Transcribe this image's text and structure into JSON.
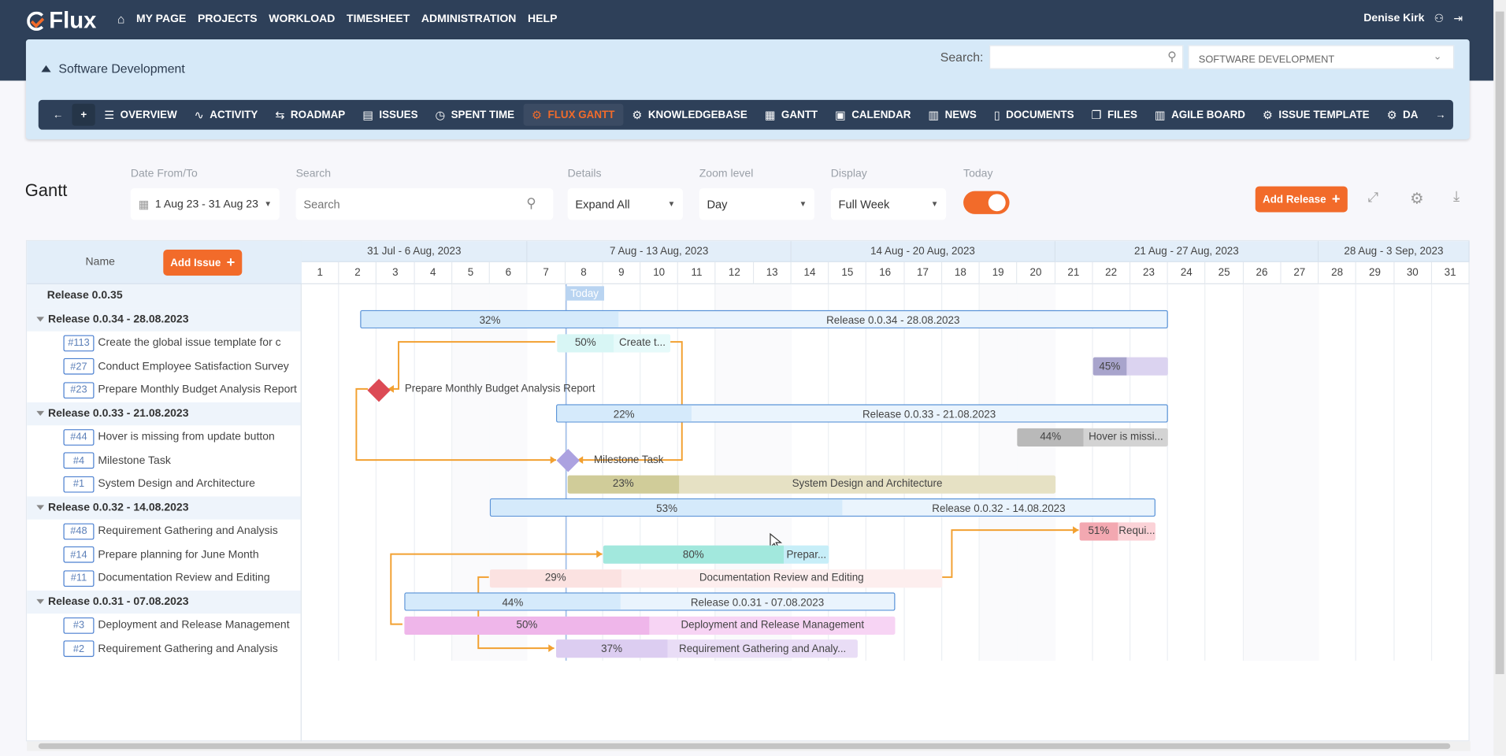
{
  "app": {
    "logo": "Flux",
    "user": "Denise Kirk"
  },
  "topnav": [
    "MY PAGE",
    "PROJECTS",
    "WORKLOAD",
    "TIMESHEET",
    "ADMINISTRATION",
    "HELP"
  ],
  "project": {
    "title": "Software Development",
    "search_label": "Search:",
    "selector": "SOFTWARE DEVELOPMENT"
  },
  "project_tabs": [
    {
      "label": "OVERVIEW",
      "icon": "overview-icon",
      "glyph": "☰"
    },
    {
      "label": "ACTIVITY",
      "icon": "activity-icon",
      "glyph": "∿"
    },
    {
      "label": "ROADMAP",
      "icon": "roadmap-icon",
      "glyph": "⇆"
    },
    {
      "label": "ISSUES",
      "icon": "issues-icon",
      "glyph": "▤"
    },
    {
      "label": "SPENT TIME",
      "icon": "clock-icon",
      "glyph": "◷"
    },
    {
      "label": "FLUX GANTT",
      "icon": "gear-icon",
      "glyph": "⚙",
      "active": true
    },
    {
      "label": "KNOWLEDGEBASE",
      "icon": "gear-icon",
      "glyph": "⚙"
    },
    {
      "label": "GANTT",
      "icon": "gantt-icon",
      "glyph": "▦"
    },
    {
      "label": "CALENDAR",
      "icon": "calendar-icon",
      "glyph": "▣"
    },
    {
      "label": "NEWS",
      "icon": "news-icon",
      "glyph": "▥"
    },
    {
      "label": "DOCUMENTS",
      "icon": "document-icon",
      "glyph": "▯"
    },
    {
      "label": "FILES",
      "icon": "files-icon",
      "glyph": "❐"
    },
    {
      "label": "AGILE BOARD",
      "icon": "board-icon",
      "glyph": "▥"
    },
    {
      "label": "ISSUE TEMPLATE",
      "icon": "gear-icon",
      "glyph": "⚙"
    },
    {
      "label": "DA",
      "icon": "gear-icon",
      "glyph": "⚙"
    }
  ],
  "page_title": "Gantt",
  "filters": {
    "date_label": "Date From/To",
    "date_value": "1 Aug 23 - 31 Aug 23",
    "search_label": "Search",
    "search_placeholder": "Search",
    "details_label": "Details",
    "details_value": "Expand All",
    "zoom_label": "Zoom level",
    "zoom_value": "Day",
    "display_label": "Display",
    "display_value": "Full Week",
    "today_label": "Today",
    "today_on": true
  },
  "actions": {
    "add_release": "Add Release",
    "add_issue": "Add Issue"
  },
  "gantt": {
    "name_header": "Name",
    "today_label": "Today",
    "today_day": 8,
    "weeks": [
      "31 Jul - 6 Aug, 2023",
      "7 Aug - 13 Aug, 2023",
      "14 Aug - 20 Aug, 2023",
      "21 Aug - 27 Aug, 2023",
      "28 Aug - 3 Sep, 2023"
    ],
    "days": [
      1,
      2,
      3,
      4,
      5,
      6,
      7,
      8,
      9,
      10,
      11,
      12,
      13,
      14,
      15,
      16,
      17,
      18,
      19,
      20,
      21,
      22,
      23,
      24,
      25,
      26,
      27,
      28,
      29,
      30,
      31
    ],
    "rows": [
      {
        "type": "release",
        "name": "Release 0.0.35",
        "expandable": false
      },
      {
        "type": "release",
        "name": "Release 0.0.34 - 28.08.2023",
        "expandable": true,
        "bar": {
          "start": 2.55,
          "end": 24,
          "progress": 32,
          "progress_text": "32%",
          "label": "Release 0.0.34 - 28.08.2023",
          "color": "#d5eafb",
          "light": "#eaf4fd",
          "border": "#5a93d8"
        }
      },
      {
        "type": "issue",
        "id": "#113",
        "name": "Create the global issue template for c",
        "bar": {
          "start": 7.78,
          "end": 10.8,
          "progress": 50,
          "progress_text": "50%",
          "label": "Create t...",
          "color": "#d8f6f5",
          "light": "#e6fafa"
        }
      },
      {
        "type": "issue",
        "id": "#27",
        "name": "Conduct Employee Satisfaction Survey",
        "bar": {
          "start": 22,
          "end": 24,
          "progress": 45,
          "progress_text": "45%",
          "label": "",
          "color": "#a8a4cc",
          "light": "#dbd3f0"
        }
      },
      {
        "type": "issue",
        "id": "#23",
        "name": "Prepare Monthly Budget Analysis Report",
        "milestone": {
          "day": 3.05,
          "color": "#dc4a55",
          "label": "Prepare Monthly Budget Analysis Report"
        }
      },
      {
        "type": "release",
        "name": "Release 0.0.33 - 21.08.2023",
        "expandable": true,
        "bar": {
          "start": 7.75,
          "end": 24,
          "progress": 22,
          "progress_text": "22%",
          "label": "Release 0.0.33 - 21.08.2023",
          "color": "#d5eafb",
          "light": "#eaf4fd",
          "border": "#5a93d8"
        }
      },
      {
        "type": "issue",
        "id": "#44",
        "name": "Hover is missing from update button",
        "bar": {
          "start": 20,
          "end": 24,
          "progress": 44,
          "progress_text": "44%",
          "label": "Hover is missi...",
          "color": "#b9b9b9",
          "light": "#d3d3d3"
        }
      },
      {
        "type": "issue",
        "id": "#4",
        "name": "Milestone Task",
        "milestone": {
          "day": 8.07,
          "color": "#aca2e0",
          "label": "Milestone Task"
        }
      },
      {
        "type": "issue",
        "id": "#1",
        "name": "System Design and Architecture",
        "bar": {
          "start": 8.05,
          "end": 21,
          "progress": 23,
          "progress_text": "23%",
          "label": "System Design and Architecture",
          "color": "#d0cc99",
          "light": "#e6e1c4"
        }
      },
      {
        "type": "release",
        "name": "Release 0.0.32 - 14.08.2023",
        "expandable": true,
        "bar": {
          "start": 6,
          "end": 23.67,
          "progress": 53,
          "progress_text": "53%",
          "label": "Release 0.0.32 - 14.08.2023",
          "color": "#d5eafb",
          "light": "#eaf4fd",
          "border": "#5a93d8"
        }
      },
      {
        "type": "issue",
        "id": "#48",
        "name": "Requirement Gathering and Analysis",
        "bar": {
          "start": 21.64,
          "end": 23.67,
          "progress": 51,
          "progress_text": "51%",
          "label": "Requi...",
          "color": "#f3a8b1",
          "light": "#fbd2d7"
        }
      },
      {
        "type": "issue",
        "id": "#14",
        "name": "Prepare planning for June Month",
        "bar": {
          "start": 9,
          "end": 15,
          "progress": 80,
          "progress_text": "80%",
          "label": "Prepar...",
          "color": "#a2e8dd",
          "light": "#c7eef8"
        }
      },
      {
        "type": "issue",
        "id": "#11",
        "name": "Documentation Review and Editing",
        "bar": {
          "start": 6,
          "end": 18,
          "progress": 29,
          "progress_text": "29%",
          "label": "Documentation Review and Editing",
          "color": "#fbe2e1",
          "light": "#fdeeee"
        }
      },
      {
        "type": "release",
        "name": "Release 0.0.31 - 07.08.2023",
        "expandable": true,
        "bar": {
          "start": 3.72,
          "end": 16.76,
          "progress": 44,
          "progress_text": "44%",
          "label": "Release 0.0.31 - 07.08.2023",
          "color": "#d5eafb",
          "light": "#eaf4fd",
          "border": "#5a93d8"
        }
      },
      {
        "type": "issue",
        "id": "#3",
        "name": "Deployment and Release Management",
        "bar": {
          "start": 3.72,
          "end": 16.76,
          "progress": 50,
          "progress_text": "50%",
          "label": "Deployment and Release Management",
          "color": "#efb6ea",
          "light": "#f7d4f4"
        }
      },
      {
        "type": "issue",
        "id": "#2",
        "name": "Requirement Gathering and Analysis",
        "bar": {
          "start": 7.75,
          "end": 15.76,
          "progress": 37,
          "progress_text": "37%",
          "label": "Requirement Gathering and Analy...",
          "color": "#dccdf1",
          "light": "#e9ddf6"
        }
      }
    ],
    "dependency_color": "#f2a030"
  }
}
